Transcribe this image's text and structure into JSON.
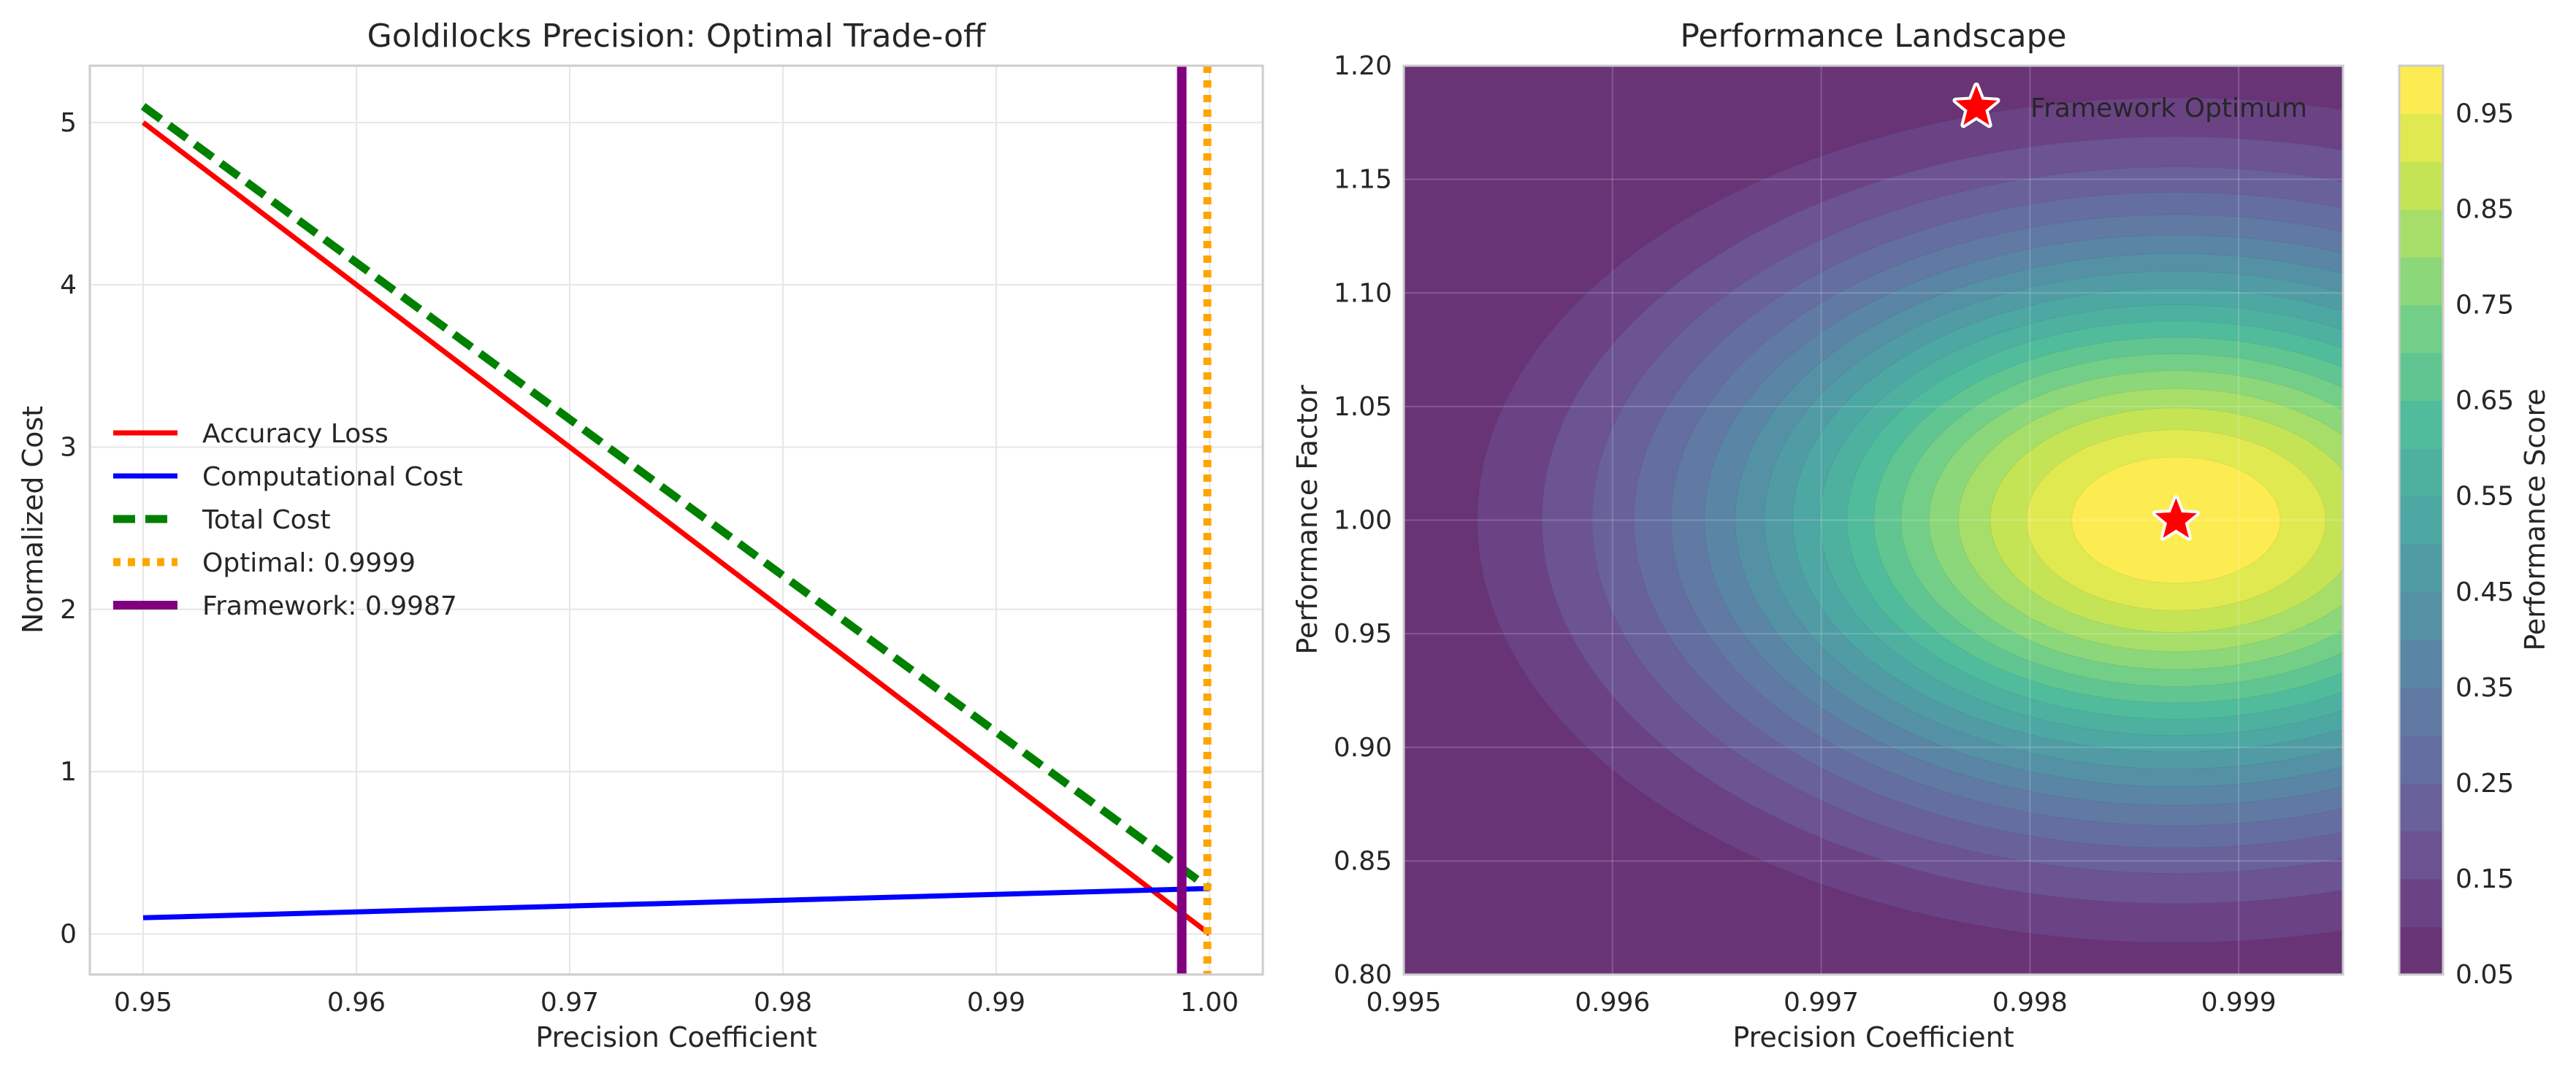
{
  "chart_data": [
    {
      "type": "line",
      "title": "Goldilocks Precision: Optimal Trade-off",
      "xlabel": "Precision Coefficient",
      "ylabel": "Normalized Cost",
      "xlim": [
        0.9475,
        1.0025
      ],
      "ylim": [
        -0.25,
        5.35
      ],
      "xticks": [
        "0.95",
        "0.96",
        "0.97",
        "0.98",
        "0.99",
        "1.00"
      ],
      "yticks": [
        "0",
        "1",
        "2",
        "3",
        "4",
        "5"
      ],
      "grid": true,
      "legend_position": "center-left",
      "series": [
        {
          "name": "Accuracy Loss",
          "color": "#ff0000",
          "style": "solid",
          "x": [
            0.95,
            1.0
          ],
          "y": [
            5.0,
            0.0
          ]
        },
        {
          "name": "Computational Cost",
          "color": "#0000ff",
          "style": "solid",
          "x": [
            0.95,
            1.0
          ],
          "y": [
            0.1,
            0.28
          ]
        },
        {
          "name": "Total Cost",
          "color": "#008000",
          "style": "dashed",
          "x": [
            0.95,
            1.0
          ],
          "y": [
            5.1,
            0.28
          ]
        }
      ],
      "vlines": [
        {
          "name": "Optimal: 0.9999",
          "x": 0.9999,
          "color": "#ffa500",
          "style": "dotted"
        },
        {
          "name": "Framework: 0.9987",
          "x": 0.9987,
          "color": "#800080",
          "style": "solid"
        }
      ]
    },
    {
      "type": "heatmap",
      "subtype": "filled-contour",
      "title": "Performance Landscape",
      "xlabel": "Precision Coefficient",
      "ylabel": "Performance Factor",
      "colorbar_label": "Performance Score",
      "colormap": "viridis",
      "xlim": [
        0.995,
        0.9995
      ],
      "ylim": [
        0.8,
        1.2
      ],
      "xticks": [
        "0.995",
        "0.996",
        "0.997",
        "0.998",
        "0.999"
      ],
      "yticks": [
        "0.80",
        "0.85",
        "0.90",
        "0.95",
        "1.00",
        "1.05",
        "1.10",
        "1.15",
        "1.20"
      ],
      "colorbar_ticks": [
        "0.05",
        "0.15",
        "0.25",
        "0.35",
        "0.45",
        "0.55",
        "0.65",
        "0.75",
        "0.85",
        "0.95"
      ],
      "colorbar_range": [
        0.05,
        1.0
      ],
      "peak": {
        "x": 0.9987,
        "y": 1.0,
        "value": 1.0
      },
      "grid": true,
      "marker": {
        "name": "Framework Optimum",
        "x": 0.9987,
        "y": 1.0,
        "symbol": "star",
        "color": "#ff0000"
      },
      "legend_position": "top-right"
    }
  ]
}
